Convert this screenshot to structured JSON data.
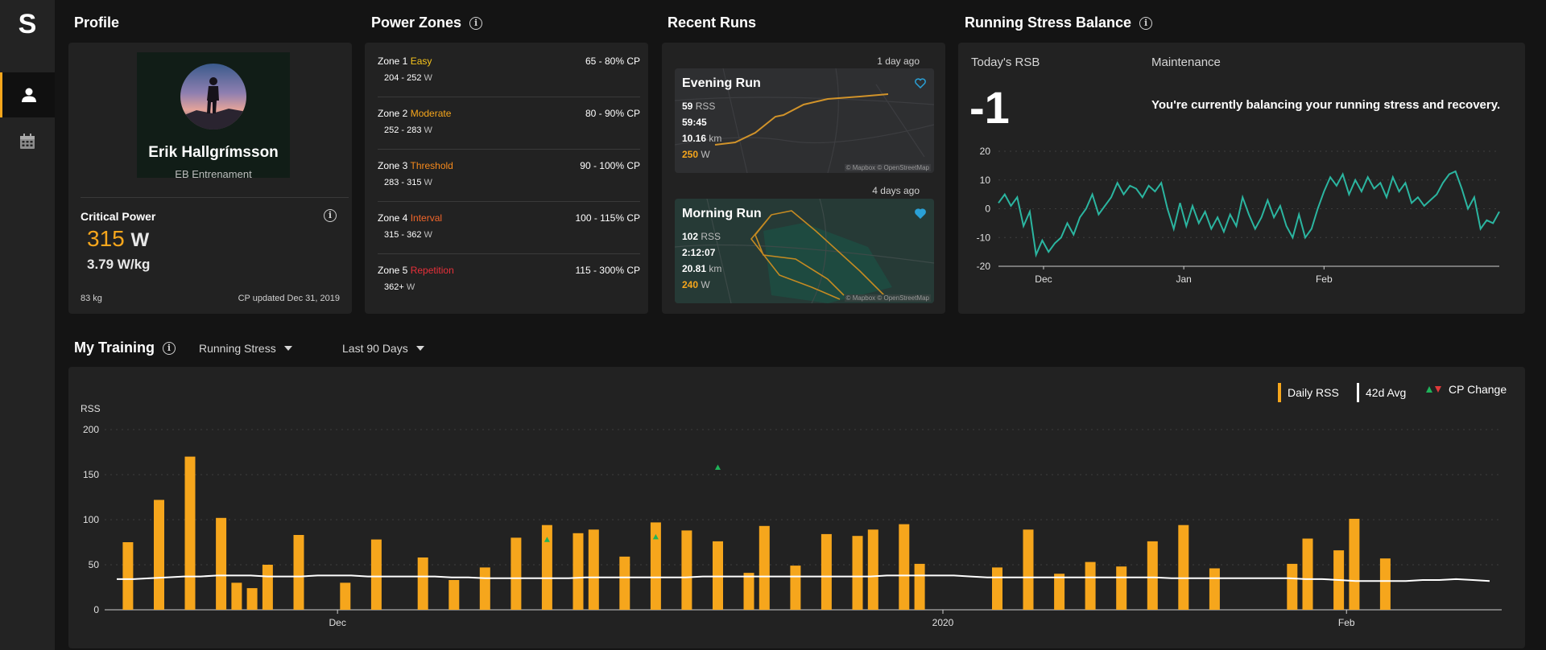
{
  "app": {
    "logo": "S"
  },
  "sidebar": {
    "items": [
      {
        "icon": "person-icon",
        "active": true
      },
      {
        "icon": "calendar-icon",
        "active": false
      }
    ]
  },
  "profile": {
    "title": "Profile",
    "name": "Erik Hallgrímsson",
    "org": "EB Entrenament",
    "cp_label": "Critical Power",
    "cp_value": "315",
    "cp_unit": "W",
    "wkg": "3.79 W/kg",
    "weight": "83 kg",
    "cp_updated": "CP updated Dec 31, 2019"
  },
  "zones": {
    "title": "Power Zones",
    "items": [
      {
        "label": "Zone 1",
        "name": "Easy",
        "color": "#f6c31c",
        "pct": "65 - 80% CP",
        "watts": "204 - 252",
        "unit": "W"
      },
      {
        "label": "Zone 2",
        "name": "Moderate",
        "color": "#f6a61c",
        "pct": "80 - 90% CP",
        "watts": "252 - 283",
        "unit": "W"
      },
      {
        "label": "Zone 3",
        "name": "Threshold",
        "color": "#f68a1c",
        "pct": "90 - 100% CP",
        "watts": "283 - 315",
        "unit": "W"
      },
      {
        "label": "Zone 4",
        "name": "Interval",
        "color": "#f2662a",
        "pct": "100 - 115% CP",
        "watts": "315 - 362",
        "unit": "W"
      },
      {
        "label": "Zone 5",
        "name": "Repetition",
        "color": "#e8303a",
        "pct": "115 - 300% CP",
        "watts": "362+",
        "unit": "W"
      }
    ]
  },
  "runs": {
    "title": "Recent Runs",
    "items": [
      {
        "ago": "1 day ago",
        "title": "Evening Run",
        "rss": "59",
        "rss_label": "RSS",
        "duration": "59:45",
        "distance": "10.16",
        "dist_unit": "km",
        "power": "250",
        "power_unit": "W",
        "liked": false,
        "attribution": "© Mapbox  © OpenStreetMap"
      },
      {
        "ago": "4 days ago",
        "title": "Morning Run",
        "rss": "102",
        "rss_label": "RSS",
        "duration": "2:12:07",
        "distance": "20.81",
        "dist_unit": "km",
        "power": "240",
        "power_unit": "W",
        "liked": true,
        "attribution": "© Mapbox  © OpenStreetMap"
      }
    ]
  },
  "rsb": {
    "title": "Running Stress Balance",
    "today_label": "Today's RSB",
    "today_value": "-1",
    "status_label": "Maintenance",
    "status_text": "You're currently balancing your running stress and recovery.",
    "line_color": "#2bb5a0"
  },
  "training": {
    "title": "My Training",
    "metric_dropdown": "Running Stress",
    "range_dropdown": "Last 90 Days",
    "legend": {
      "daily": "Daily RSS",
      "avg": "42d Avg",
      "cp": "CP Change"
    },
    "bar_color": "#f6a61c",
    "avg_color": "#ffffff"
  },
  "chart_data": [
    {
      "type": "line",
      "name": "rsb",
      "x_ticks": [
        "Dec",
        "Jan",
        "Feb"
      ],
      "y_ticks": [
        20,
        10,
        0,
        -10,
        -20
      ],
      "ylim": [
        -20,
        20
      ],
      "grid": true,
      "values": [
        2,
        5,
        1,
        4,
        -6,
        -1,
        -16,
        -11,
        -15,
        -12,
        -10,
        -5,
        -9,
        -3,
        0,
        5,
        -2,
        1,
        4,
        9,
        5,
        8,
        7,
        4,
        8,
        6,
        9,
        0,
        -7,
        2,
        -6,
        1,
        -5,
        -1,
        -7,
        -3,
        -8,
        -2,
        -6,
        4,
        -2,
        -7,
        -3,
        3,
        -3,
        1,
        -6,
        -10,
        -2,
        -10,
        -7,
        0,
        6,
        11,
        8,
        12,
        5,
        10,
        6,
        11,
        7,
        9,
        4,
        11,
        6,
        9,
        2,
        4,
        1,
        3,
        5,
        9,
        12,
        13,
        7,
        0,
        4,
        -7,
        -4,
        -5,
        -1
      ]
    },
    {
      "type": "bar",
      "name": "daily-rss",
      "ylabel": "RSS",
      "y_ticks": [
        0,
        50,
        100,
        150,
        200
      ],
      "ylim": [
        0,
        200
      ],
      "x_ticks": [
        "Dec",
        "2020",
        "Feb"
      ],
      "grid": true,
      "bars": [
        [
          1,
          75
        ],
        [
          3,
          122
        ],
        [
          5,
          170
        ],
        [
          7,
          102
        ],
        [
          8,
          30
        ],
        [
          9,
          24
        ],
        [
          10,
          50
        ],
        [
          12,
          83
        ],
        [
          15,
          30
        ],
        [
          17,
          78
        ],
        [
          20,
          58
        ],
        [
          22,
          33
        ],
        [
          24,
          47
        ],
        [
          26,
          80
        ],
        [
          28,
          94
        ],
        [
          30,
          85
        ],
        [
          31,
          89
        ],
        [
          33,
          59
        ],
        [
          35,
          97
        ],
        [
          37,
          88
        ],
        [
          39,
          76
        ],
        [
          41,
          41
        ],
        [
          42,
          93
        ],
        [
          44,
          49
        ],
        [
          46,
          84
        ],
        [
          48,
          82
        ],
        [
          49,
          89
        ],
        [
          51,
          95
        ],
        [
          52,
          51
        ],
        [
          57,
          47
        ],
        [
          59,
          89
        ],
        [
          61,
          40
        ],
        [
          63,
          53
        ],
        [
          65,
          48
        ],
        [
          67,
          76
        ],
        [
          69,
          94
        ],
        [
          71,
          46
        ],
        [
          76,
          51
        ],
        [
          77,
          79
        ],
        [
          79,
          66
        ],
        [
          80,
          101
        ],
        [
          82,
          57
        ]
      ],
      "avg_line": [
        34,
        34,
        35,
        36,
        37,
        37,
        38,
        38,
        38,
        37,
        37,
        37,
        38,
        38,
        38,
        37,
        37,
        37,
        37,
        37,
        36,
        36,
        35,
        35,
        35,
        35,
        35,
        35,
        36,
        36,
        36,
        36,
        36,
        36,
        36,
        37,
        37,
        37,
        37,
        37,
        37,
        37,
        37,
        37,
        37,
        37,
        38,
        38,
        38,
        38,
        38,
        37,
        36,
        36,
        36,
        36,
        36,
        36,
        36,
        36,
        36,
        36,
        36,
        35,
        35,
        35,
        35,
        35,
        35,
        35,
        35,
        34,
        34,
        33,
        32,
        32,
        32,
        32,
        33,
        33,
        34,
        33,
        32
      ],
      "cp_changes": [
        [
          28,
          "up"
        ],
        [
          35,
          "up"
        ],
        [
          39,
          "up"
        ]
      ]
    }
  ]
}
